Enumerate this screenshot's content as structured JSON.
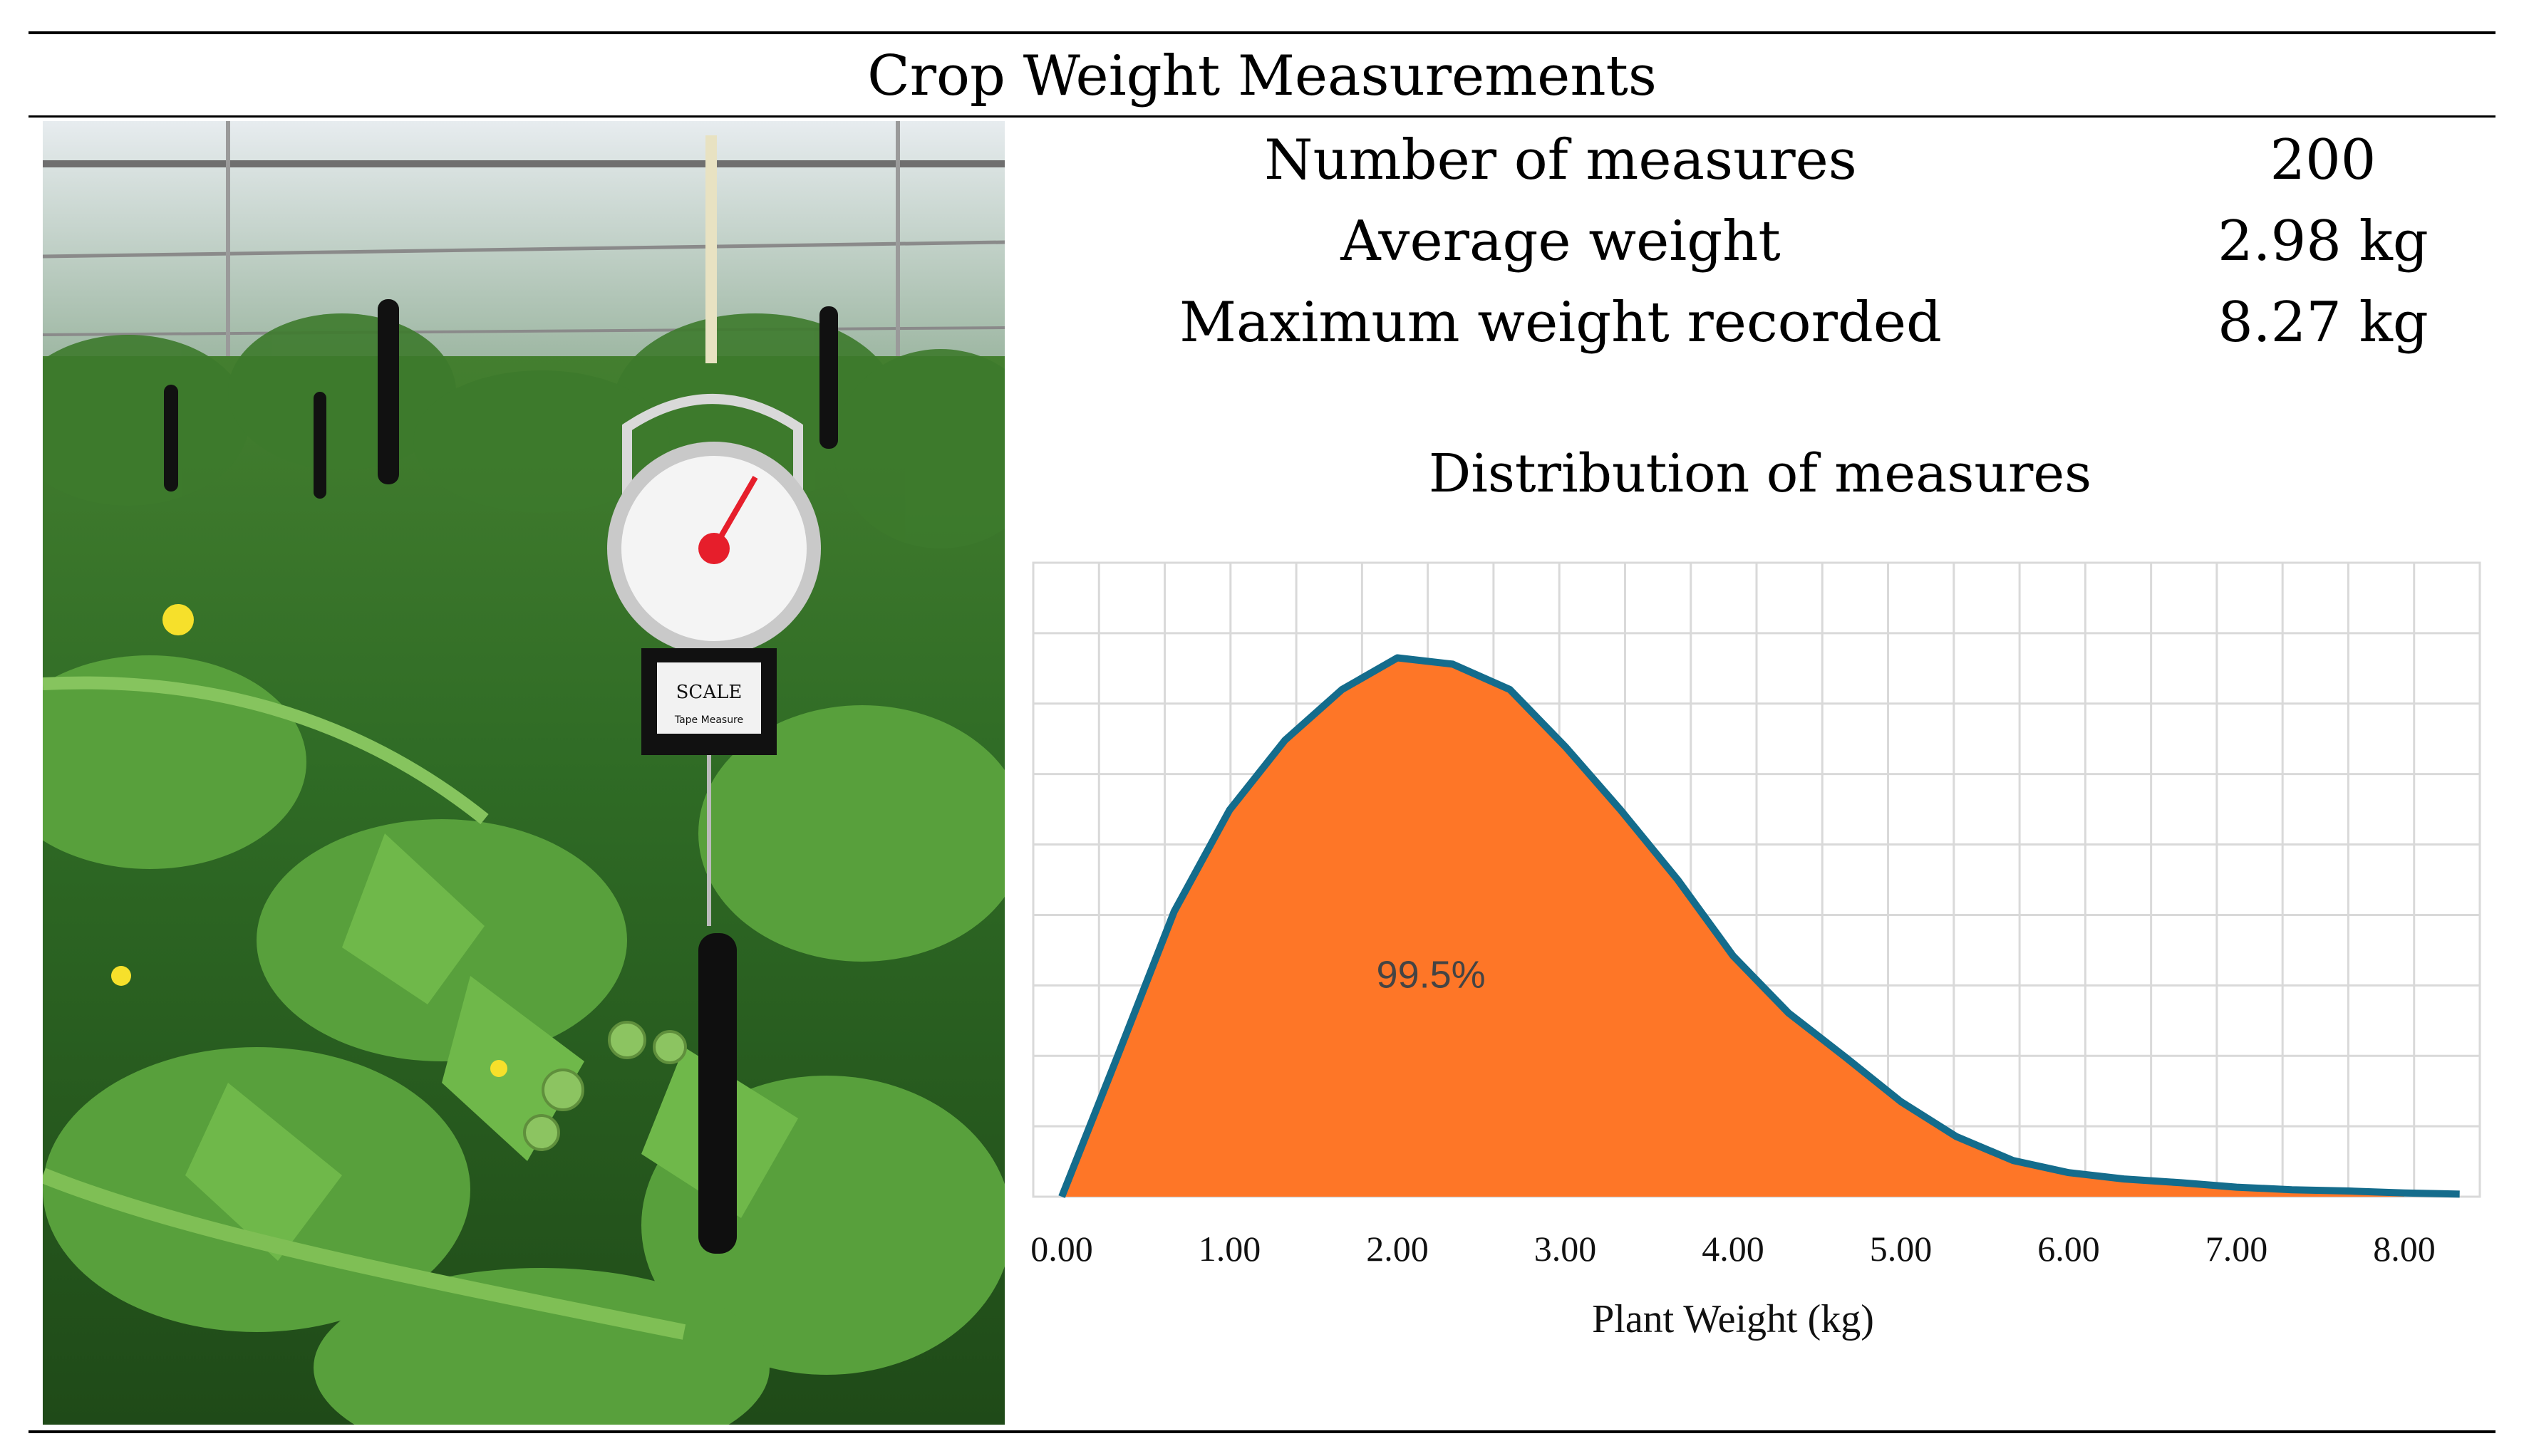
{
  "figure": {
    "title": "Crop Weight Measurements",
    "photo": {
      "scale_brand_text": "SCALE",
      "scale_sub_text": "Tape Measure"
    },
    "stats": [
      {
        "label": "Number of measures",
        "value": "200"
      },
      {
        "label": "Average weight",
        "value": "2.98 kg"
      },
      {
        "label": "Maximum weight recorded",
        "value": "8.27 kg"
      }
    ]
  },
  "chart_data": {
    "type": "area",
    "title": "Distribution of measures",
    "xlabel": "Plant Weight (kg)",
    "ylabel": "",
    "xlim": [
      0,
      8.0
    ],
    "ylim": [
      0,
      1.0
    ],
    "x_ticks": [
      "0.00",
      "1.00",
      "2.00",
      "3.00",
      "4.00",
      "5.00",
      "6.00",
      "7.00",
      "8.00"
    ],
    "grid": true,
    "annotation": "99.5%",
    "colors": {
      "fill": "#fe7627",
      "line": "#146c8c",
      "grid": "#d9d9d9"
    },
    "series": [
      {
        "x": [
          0.0,
          0.33,
          0.67,
          1.0,
          1.33,
          1.67,
          2.0,
          2.33,
          2.67,
          3.0,
          3.33,
          3.67,
          4.0,
          4.33,
          4.67,
          5.0,
          5.33,
          5.67,
          6.0,
          6.33,
          6.67,
          7.0,
          7.33,
          7.67,
          8.0,
          8.33
        ],
        "values": [
          0.0,
          0.22,
          0.45,
          0.61,
          0.72,
          0.8,
          0.85,
          0.84,
          0.8,
          0.71,
          0.61,
          0.5,
          0.38,
          0.29,
          0.22,
          0.15,
          0.095,
          0.057,
          0.038,
          0.028,
          0.022,
          0.015,
          0.011,
          0.009,
          0.006,
          0.004
        ]
      }
    ]
  }
}
